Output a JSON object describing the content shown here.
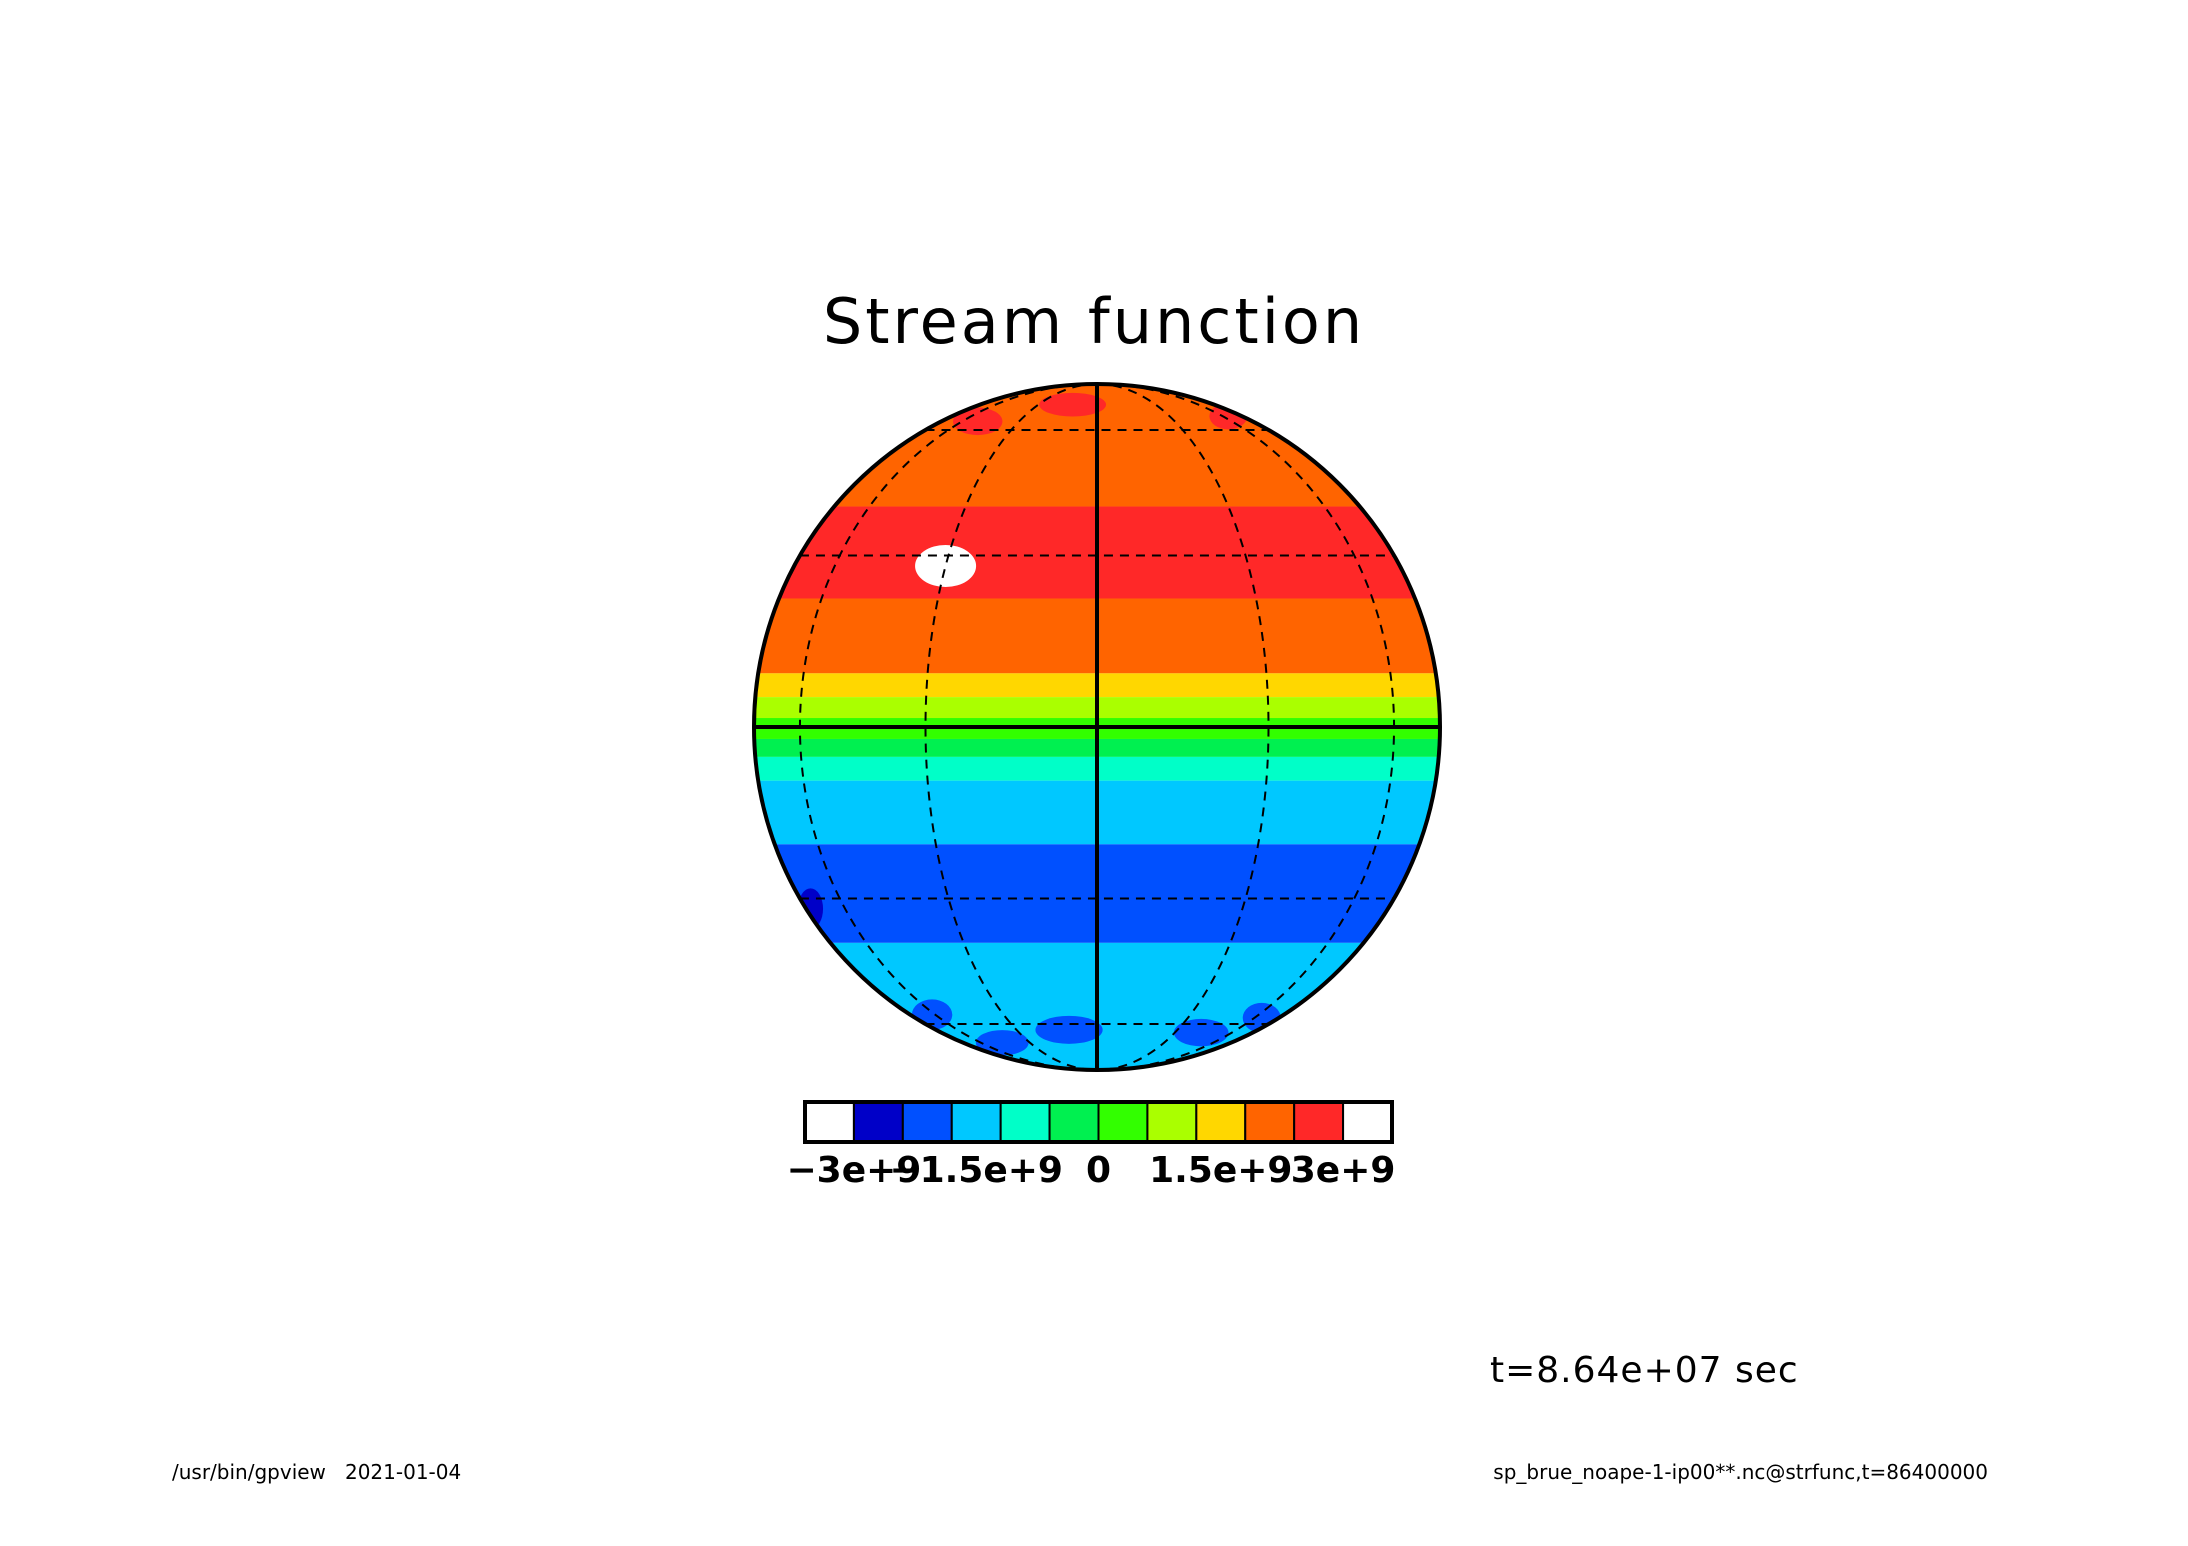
{
  "app": {
    "program": "/usr/bin/gpview",
    "date": "2021-01-04",
    "source": "sp_brue_noape-1-ip00**.nc@strfunc,t=86400000"
  },
  "time_label": "t=8.64e+07 sec",
  "chart_data": {
    "type": "heatmap",
    "title": "Stream function",
    "projection": "orthographic",
    "grid": true,
    "grid_lines": {
      "meridians_deg": [
        -90,
        -60,
        -30,
        0,
        30,
        60,
        90
      ],
      "parallels_deg": [
        -60,
        -30,
        0,
        30,
        60
      ]
    },
    "colorbar": {
      "levels": [
        -3000000000.0,
        -2500000000.0,
        -2000000000.0,
        -1500000000.0,
        -1000000000.0,
        -500000000.0,
        0,
        500000000.0,
        1000000000.0,
        1500000000.0,
        2000000000.0,
        2500000000.0,
        3000000000.0
      ],
      "colors": [
        "#ffffff",
        "#0000c8",
        "#0050ff",
        "#00c8ff",
        "#00ffc8",
        "#00f050",
        "#32ff00",
        "#aaff00",
        "#ffd700",
        "#ff6400",
        "#ff2828",
        "#ffffff"
      ],
      "tick_labels": [
        "−3e+9",
        "−1.5e+9",
        "0",
        "1.5e+9",
        "3e+9"
      ],
      "tick_values": [
        -3000000000.0,
        -1500000000.0,
        0,
        1500000000.0,
        3000000000.0
      ]
    },
    "latitude_bands": [
      {
        "lat_from": 90,
        "lat_to": 40,
        "value": 1750000000.0
      },
      {
        "lat_from": 40,
        "lat_to": 22,
        "value": 2250000000.0
      },
      {
        "lat_from": 22,
        "lat_to": 9,
        "value": 1750000000.0
      },
      {
        "lat_from": 9,
        "lat_to": 5,
        "value": 1250000000.0
      },
      {
        "lat_from": 5,
        "lat_to": 1.5,
        "value": 750000000.0
      },
      {
        "lat_from": 1.5,
        "lat_to": -2,
        "value": 250000000.0
      },
      {
        "lat_from": -2,
        "lat_to": -5,
        "value": -250000000.0
      },
      {
        "lat_from": -5,
        "lat_to": -9,
        "value": -750000000.0
      },
      {
        "lat_from": -9,
        "lat_to": -20,
        "value": -1250000000.0
      },
      {
        "lat_from": -20,
        "lat_to": -39,
        "value": -1750000000.0
      },
      {
        "lat_from": -39,
        "lat_to": -90,
        "value": -1250000000.0
      }
    ],
    "blobs": [
      {
        "lon": -30,
        "lat": 28,
        "value": 2750000000.0
      },
      {
        "lon": -12,
        "lat": 70,
        "value": 2250000000.0
      },
      {
        "lon": -50,
        "lat": 63,
        "value": 2250000000.0
      },
      {
        "lon": 65,
        "lat": 65,
        "value": 2250000000.0
      },
      {
        "lon": -62,
        "lat": -57,
        "value": -1750000000.0
      },
      {
        "lon": -45,
        "lat": -67,
        "value": -1750000000.0
      },
      {
        "lon": -10,
        "lat": -62,
        "value": -1750000000.0
      },
      {
        "lon": 42,
        "lat": -63,
        "value": -1750000000.0
      },
      {
        "lon": 65,
        "lat": -58,
        "value": -1750000000.0
      },
      {
        "lon": -80,
        "lat": -32,
        "value": -2250000000.0
      }
    ]
  }
}
